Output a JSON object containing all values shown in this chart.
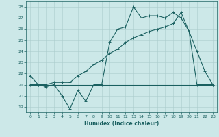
{
  "xlabel": "Humidex (Indice chaleur)",
  "bg_color": "#cce8e8",
  "grid_color": "#aacccc",
  "line_color": "#1a6060",
  "xlim": [
    -0.5,
    23.5
  ],
  "ylim": [
    18.5,
    28.5
  ],
  "xticks": [
    0,
    1,
    2,
    3,
    4,
    5,
    6,
    7,
    8,
    9,
    10,
    11,
    12,
    13,
    14,
    15,
    16,
    17,
    18,
    19,
    20,
    21,
    22,
    23
  ],
  "yticks": [
    19,
    20,
    21,
    22,
    23,
    24,
    25,
    26,
    27,
    28
  ],
  "line1_x": [
    0,
    1,
    2,
    3,
    4,
    5,
    6,
    7,
    8,
    9,
    10,
    11,
    12,
    13,
    14,
    15,
    16,
    17,
    18,
    19,
    20,
    21,
    22,
    23
  ],
  "line1_y": [
    21.8,
    21.0,
    20.8,
    21.0,
    20.0,
    18.8,
    20.5,
    19.5,
    21.0,
    21.0,
    24.8,
    26.0,
    26.2,
    28.0,
    27.0,
    27.2,
    27.2,
    27.0,
    27.5,
    27.0,
    25.8,
    24.0,
    22.2,
    21.0
  ],
  "line2_x": [
    0,
    23
  ],
  "line2_y": [
    21.0,
    21.0
  ],
  "line3_x": [
    0,
    1,
    2,
    3,
    4,
    5,
    6,
    7,
    8,
    9,
    10,
    11,
    12,
    13,
    14,
    15,
    16,
    17,
    18,
    19,
    20,
    21,
    22,
    23
  ],
  "line3_y": [
    21.0,
    21.0,
    21.0,
    21.2,
    21.2,
    21.2,
    21.8,
    22.2,
    22.8,
    23.2,
    23.8,
    24.2,
    24.8,
    25.2,
    25.5,
    25.8,
    26.0,
    26.2,
    26.5,
    27.5,
    25.8,
    21.0,
    21.0,
    21.0
  ]
}
